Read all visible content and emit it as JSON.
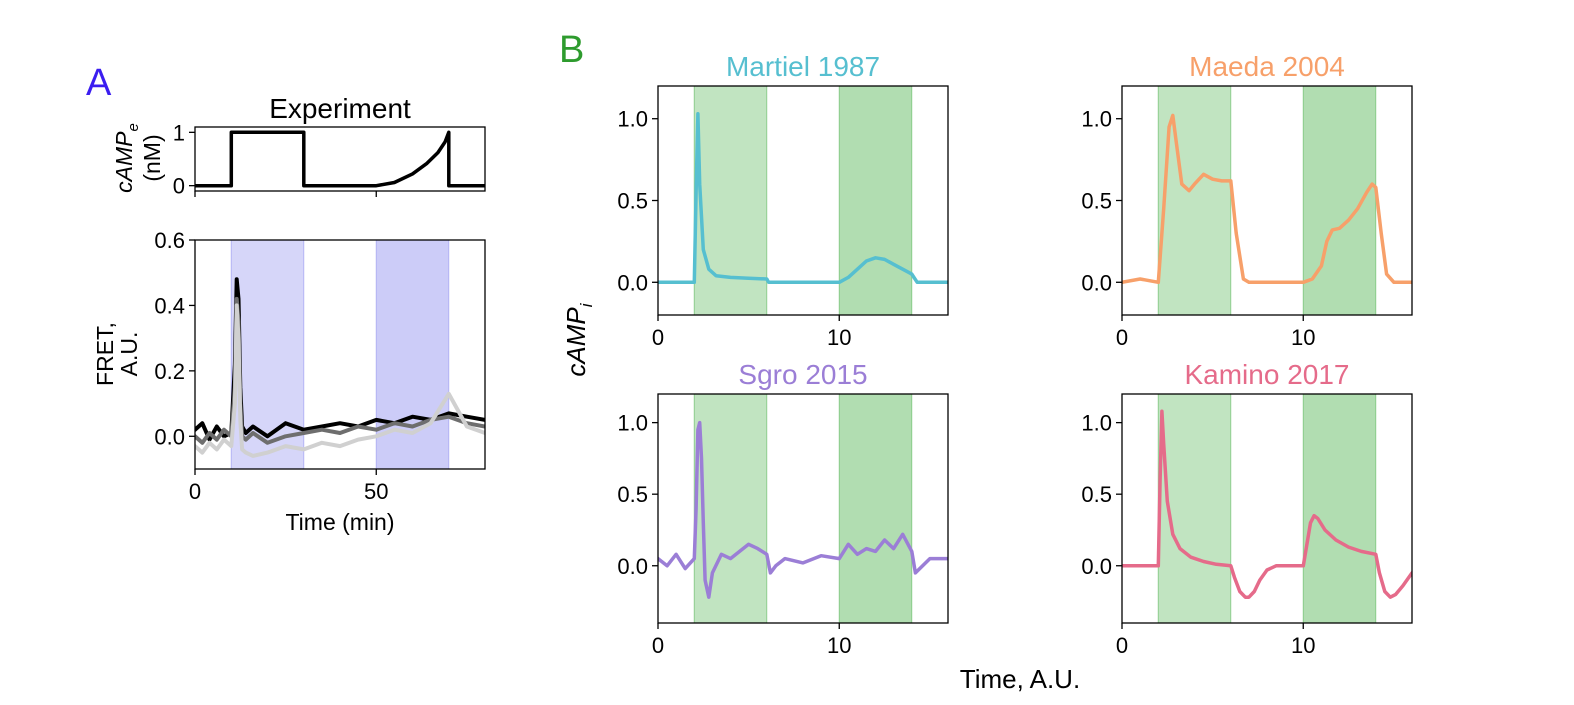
{
  "figure": {
    "panel_letters": {
      "a": "A",
      "b": "B"
    },
    "colors": {
      "letter_a": "#3b1df0",
      "letter_b": "#2e9b2e",
      "experiment_shade": "#9494f0",
      "model_shade": "#5cb85c",
      "stimulus_line": "#000000"
    },
    "shared_labels": {
      "model_ylabel": "cAMP_i",
      "model_xlabel": "Time, A.U."
    }
  },
  "chart_data": [
    {
      "id": "stimulus",
      "type": "line",
      "title": "Experiment",
      "ylabel_main": "cAMP_e",
      "ylabel_unit": "(nM)",
      "xlim": [
        0,
        80
      ],
      "ylim": [
        -0.1,
        1.1
      ],
      "yticks": [
        0,
        1
      ],
      "xticks": [
        0,
        50
      ],
      "show_xtick_labels": false,
      "series": [
        {
          "color": "#000000",
          "x": [
            0,
            10,
            10,
            30,
            30,
            50,
            55,
            60,
            64,
            67,
            69,
            70,
            70,
            80
          ],
          "y": [
            0,
            0,
            1,
            1,
            0,
            0,
            0.06,
            0.22,
            0.42,
            0.62,
            0.82,
            1.0,
            0,
            0
          ]
        }
      ]
    },
    {
      "id": "experiment",
      "type": "line",
      "xlabel": "Time (min)",
      "ylabel_lines": [
        "FRET,",
        "A.U."
      ],
      "xlim": [
        0,
        80
      ],
      "ylim": [
        -0.1,
        0.6
      ],
      "yticks": [
        0.0,
        0.2,
        0.4,
        0.6
      ],
      "xticks": [
        0,
        50
      ],
      "shaded_intervals": [
        [
          10,
          30
        ],
        [
          50,
          70
        ]
      ],
      "series": [
        {
          "color": "#000000",
          "x": [
            0,
            2,
            4,
            6,
            8,
            10,
            11,
            11.5,
            12,
            12.5,
            13,
            14,
            16,
            20,
            25,
            30,
            35,
            40,
            45,
            50,
            55,
            60,
            65,
            70,
            75,
            80
          ],
          "y": [
            0.02,
            0.04,
            -0.01,
            0.03,
            0.0,
            0.01,
            0.22,
            0.48,
            0.42,
            0.15,
            0.03,
            0.01,
            0.03,
            0.0,
            0.04,
            0.02,
            0.03,
            0.04,
            0.03,
            0.05,
            0.04,
            0.06,
            0.05,
            0.07,
            0.06,
            0.05
          ]
        },
        {
          "color": "#6e6e6e",
          "x": [
            0,
            2,
            4,
            6,
            8,
            10,
            11,
            11.5,
            12,
            12.5,
            13,
            14,
            16,
            20,
            25,
            30,
            35,
            40,
            45,
            50,
            55,
            60,
            65,
            70,
            75,
            80
          ],
          "y": [
            0.0,
            -0.02,
            0.01,
            -0.01,
            0.02,
            0.0,
            0.15,
            0.42,
            0.35,
            0.1,
            0.0,
            -0.01,
            0.01,
            -0.02,
            0.0,
            0.01,
            0.02,
            0.01,
            0.03,
            0.02,
            0.04,
            0.03,
            0.05,
            0.06,
            0.04,
            0.03
          ]
        },
        {
          "color": "#d0d0d0",
          "x": [
            0,
            2,
            4,
            6,
            8,
            10,
            11,
            11.5,
            12,
            12.5,
            13,
            14,
            16,
            20,
            25,
            30,
            35,
            40,
            45,
            50,
            55,
            60,
            65,
            70,
            75,
            80
          ],
          "y": [
            -0.03,
            -0.05,
            -0.02,
            -0.04,
            -0.01,
            -0.03,
            0.1,
            0.4,
            0.3,
            0.05,
            -0.04,
            -0.05,
            -0.06,
            -0.05,
            -0.03,
            -0.04,
            -0.02,
            -0.03,
            -0.01,
            0.0,
            0.02,
            0.01,
            0.04,
            0.13,
            0.03,
            0.01
          ]
        }
      ]
    },
    {
      "id": "martiel",
      "type": "line",
      "title": "Martiel 1987",
      "color": "#56bfd0",
      "xlim": [
        0,
        16
      ],
      "ylim": [
        -0.2,
        1.2
      ],
      "yticks": [
        0.0,
        0.5,
        1.0
      ],
      "xticks": [
        0,
        10
      ],
      "shaded_intervals": [
        [
          2,
          6
        ],
        [
          10,
          14
        ]
      ],
      "series": [
        {
          "x": [
            0,
            2.0,
            2.1,
            2.2,
            2.3,
            2.5,
            2.8,
            3.2,
            4.0,
            5.0,
            6.0,
            6.1,
            7,
            8,
            9,
            10,
            10.5,
            11,
            11.5,
            12,
            12.5,
            13,
            13.5,
            14,
            14.3,
            15,
            16
          ],
          "y": [
            0,
            0,
            0.55,
            1.03,
            0.6,
            0.2,
            0.08,
            0.04,
            0.03,
            0.025,
            0.02,
            0.0,
            0,
            0,
            0,
            0,
            0.03,
            0.08,
            0.13,
            0.15,
            0.14,
            0.11,
            0.08,
            0.05,
            0.0,
            0,
            0
          ]
        }
      ]
    },
    {
      "id": "maeda",
      "type": "line",
      "title": "Maeda 2004",
      "color": "#f7a06a",
      "xlim": [
        0,
        16
      ],
      "ylim": [
        -0.2,
        1.2
      ],
      "yticks": [
        0.0,
        0.5,
        1.0
      ],
      "xticks": [
        0,
        10
      ],
      "shaded_intervals": [
        [
          2,
          6
        ],
        [
          10,
          14
        ]
      ],
      "series": [
        {
          "x": [
            0,
            1,
            2,
            2.3,
            2.6,
            2.8,
            3.0,
            3.3,
            3.7,
            4.0,
            4.5,
            5.0,
            5.5,
            6.0,
            6.3,
            6.7,
            7,
            8,
            9,
            10,
            10.5,
            11,
            11.3,
            11.6,
            12.0,
            12.5,
            13.0,
            13.5,
            13.8,
            14.0,
            14.3,
            14.6,
            15,
            16
          ],
          "y": [
            0,
            0.02,
            0.0,
            0.45,
            0.95,
            1.02,
            0.85,
            0.6,
            0.56,
            0.6,
            0.66,
            0.63,
            0.62,
            0.62,
            0.3,
            0.02,
            0,
            0,
            0,
            0,
            0.02,
            0.1,
            0.25,
            0.32,
            0.33,
            0.38,
            0.45,
            0.55,
            0.6,
            0.58,
            0.3,
            0.05,
            0,
            0
          ]
        }
      ]
    },
    {
      "id": "sgro",
      "type": "line",
      "title": "Sgro 2015",
      "color": "#9b7ed6",
      "xlim": [
        0,
        16
      ],
      "ylim": [
        -0.4,
        1.2
      ],
      "yticks": [
        0.0,
        0.5,
        1.0
      ],
      "xticks": [
        0,
        10
      ],
      "shaded_intervals": [
        [
          2,
          6
        ],
        [
          10,
          14
        ]
      ],
      "series": [
        {
          "x": [
            0,
            0.5,
            1.0,
            1.5,
            2.0,
            2.1,
            2.2,
            2.3,
            2.4,
            2.5,
            2.6,
            2.8,
            3.0,
            3.5,
            4.0,
            4.5,
            5.0,
            5.5,
            6.0,
            6.2,
            6.5,
            7,
            8,
            9,
            10,
            10.5,
            11,
            11.5,
            12,
            12.5,
            13,
            13.5,
            14.0,
            14.2,
            15,
            16
          ],
          "y": [
            0.05,
            0.0,
            0.08,
            -0.02,
            0.05,
            0.4,
            0.95,
            1.0,
            0.75,
            0.3,
            -0.1,
            -0.22,
            -0.05,
            0.08,
            0.05,
            0.1,
            0.15,
            0.12,
            0.08,
            -0.05,
            0.0,
            0.05,
            0.02,
            0.07,
            0.05,
            0.15,
            0.08,
            0.12,
            0.1,
            0.18,
            0.12,
            0.22,
            0.1,
            -0.05,
            0.05,
            0.05
          ]
        }
      ]
    },
    {
      "id": "kamino",
      "type": "line",
      "title": "Kamino 2017",
      "color": "#e56b8a",
      "xlim": [
        0,
        16
      ],
      "ylim": [
        -0.4,
        1.2
      ],
      "yticks": [
        0.0,
        0.5,
        1.0
      ],
      "xticks": [
        0,
        10
      ],
      "shaded_intervals": [
        [
          2,
          6
        ],
        [
          10,
          14
        ]
      ],
      "series": [
        {
          "x": [
            0,
            2.0,
            2.1,
            2.2,
            2.3,
            2.5,
            2.8,
            3.2,
            3.8,
            4.5,
            5.2,
            6.0,
            6.2,
            6.5,
            6.8,
            7.0,
            7.3,
            7.6,
            8.0,
            8.5,
            9.0,
            10.0,
            10.2,
            10.4,
            10.6,
            10.8,
            11.2,
            11.8,
            12.5,
            13.2,
            14.0,
            14.2,
            14.5,
            14.8,
            15.1,
            15.5,
            16
          ],
          "y": [
            0,
            0,
            0.6,
            1.08,
            0.85,
            0.45,
            0.22,
            0.12,
            0.06,
            0.03,
            0.01,
            0.0,
            -0.08,
            -0.18,
            -0.22,
            -0.22,
            -0.18,
            -0.1,
            -0.03,
            0,
            0,
            0,
            0.15,
            0.3,
            0.35,
            0.33,
            0.25,
            0.18,
            0.13,
            0.1,
            0.08,
            -0.05,
            -0.18,
            -0.22,
            -0.2,
            -0.14,
            -0.05
          ]
        }
      ]
    }
  ]
}
